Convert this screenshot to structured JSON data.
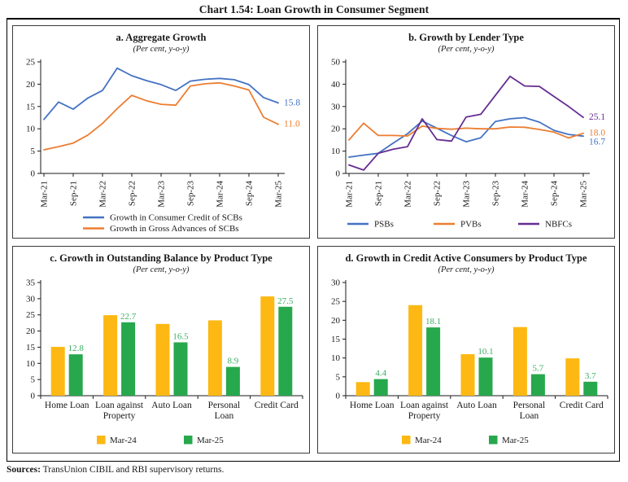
{
  "page": {
    "title": "Chart 1.54: Loan Growth in Consumer Segment",
    "sources_label": "Sources:",
    "sources_text": " TransUnion CIBIL and RBI supervisory returns."
  },
  "colors": {
    "blue": "#4472c4",
    "orange": "#ed7d31",
    "purple": "#662d91",
    "gold": "#fdb813",
    "green": "#27a84c"
  },
  "chart_data": [
    {
      "id": "a",
      "type": "line",
      "title": "a. Aggregate Growth",
      "subtitle": "(Per cent, y-o-y)",
      "x_tick_labels": [
        "Mar-21",
        "Sep-21",
        "Mar-22",
        "Sep-22",
        "Mar-23",
        "Sep-23",
        "Mar-24",
        "Sep-24",
        "Mar-25"
      ],
      "points_per_tick": 2,
      "ylim": [
        0,
        25
      ],
      "ytick_step": 5,
      "legend_position": "bottom-stacked",
      "series": [
        {
          "name": "Growth in Consumer Credit of SCBs",
          "color": "#4472c4",
          "end_label": "15.8",
          "values": [
            12.1,
            16.0,
            14.4,
            16.9,
            18.6,
            23.6,
            21.9,
            20.8,
            19.9,
            18.6,
            20.7,
            21.1,
            21.3,
            21.0,
            19.9,
            17.0,
            15.8
          ]
        },
        {
          "name": "Growth in Gross Advances of SCBs",
          "color": "#ed7d31",
          "end_label": "11.0",
          "values": [
            5.3,
            6.0,
            6.8,
            8.6,
            11.2,
            14.5,
            17.5,
            16.3,
            15.5,
            15.3,
            19.6,
            20.1,
            20.3,
            19.6,
            18.7,
            12.6,
            11.0
          ]
        }
      ]
    },
    {
      "id": "b",
      "type": "line",
      "title": "b. Growth by Lender Type",
      "subtitle": "(Per cent, y-o-y)",
      "x_tick_labels": [
        "Mar-21",
        "Sep-21",
        "Mar-22",
        "Sep-22",
        "Mar-23",
        "Sep-23",
        "Mar-24",
        "Sep-24",
        "Mar-25"
      ],
      "points_per_tick": 2,
      "ylim": [
        0,
        50
      ],
      "ytick_step": 10,
      "legend_position": "bottom-inline",
      "series": [
        {
          "name": "PSBs",
          "color": "#4472c4",
          "end_label": "16.7",
          "values": [
            7.3,
            8.2,
            9.0,
            13.5,
            17.8,
            23.5,
            20.3,
            17.0,
            14.2,
            16.0,
            23.3,
            24.5,
            25.0,
            23.0,
            19.3,
            17.5,
            16.7
          ]
        },
        {
          "name": "PVBs",
          "color": "#ed7d31",
          "end_label": "18.0",
          "values": [
            15.0,
            22.5,
            17.0,
            17.0,
            16.8,
            21.2,
            20.2,
            19.8,
            20.3,
            20.0,
            20.0,
            20.8,
            20.7,
            19.7,
            18.5,
            15.9,
            18.0
          ]
        },
        {
          "name": "NBFCs",
          "color": "#662d91",
          "end_label": "25.1",
          "values": [
            3.8,
            1.5,
            9.0,
            10.8,
            12.0,
            24.5,
            15.2,
            14.5,
            25.3,
            26.5,
            35.0,
            43.5,
            39.2,
            39.0,
            34.5,
            30.0,
            25.1
          ]
        }
      ]
    },
    {
      "id": "c",
      "type": "bar",
      "title": "c. Growth in Outstanding Balance by Product Type",
      "subtitle": "(Per cent, y-o-y)",
      "categories": [
        [
          "Home Loan"
        ],
        [
          "Loan against",
          "Property"
        ],
        [
          "Auto Loan"
        ],
        [
          "Personal",
          "Loan"
        ],
        [
          "Credit Card"
        ]
      ],
      "ylim": [
        0,
        35
      ],
      "ytick_step": 5,
      "series": [
        {
          "name": "Mar-24",
          "color": "#fdb813",
          "values": [
            15.1,
            24.9,
            22.2,
            23.3,
            30.7
          ]
        },
        {
          "name": "Mar-25",
          "color": "#27a84c",
          "label_color": "#3cae63",
          "values": [
            12.8,
            22.7,
            16.5,
            8.9,
            27.5
          ],
          "value_labels": [
            "12.8",
            "22.7",
            "16.5",
            "8.9",
            "27.5"
          ]
        }
      ]
    },
    {
      "id": "d",
      "type": "bar",
      "title": "d. Growth in Credit Active Consumers by Product Type",
      "subtitle": "(Per cent, y-o-y)",
      "categories": [
        [
          "Home Loan"
        ],
        [
          "Loan against",
          "Property"
        ],
        [
          "Auto Loan"
        ],
        [
          "Personal",
          "Loan"
        ],
        [
          "Credit Card"
        ]
      ],
      "ylim": [
        0,
        30
      ],
      "ytick_step": 5,
      "series": [
        {
          "name": "Mar-24",
          "color": "#fdb813",
          "values": [
            3.6,
            24.0,
            11.0,
            18.2,
            9.9
          ]
        },
        {
          "name": "Mar-25",
          "color": "#27a84c",
          "label_color": "#3cae63",
          "values": [
            4.4,
            18.1,
            10.1,
            5.7,
            3.7
          ],
          "value_labels": [
            "4.4",
            "18.1",
            "10.1",
            "5.7",
            "3.7"
          ]
        }
      ]
    }
  ]
}
